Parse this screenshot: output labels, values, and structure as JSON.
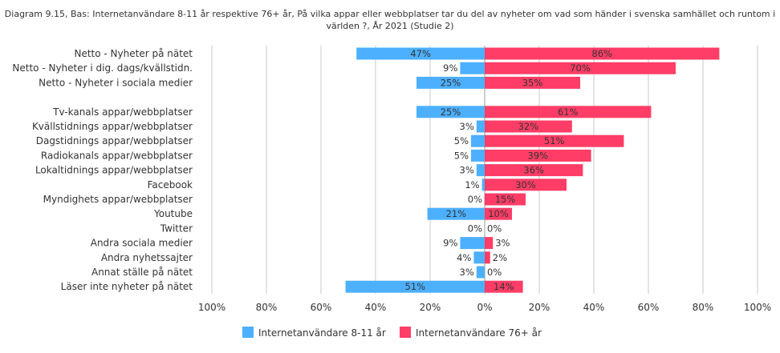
{
  "chart_data": {
    "type": "bar",
    "orientation": "horizontal-diverging",
    "title": "Diagram 9.15, Bas: Internetanvändare 8-11 år respektive 76+ år, På vilka appar eller webbplatser tar du del av nyheter om vad som händer i svenska samhället och runtom i världen ?, År 2021 (Studie 2)",
    "categories": [
      "Netto - Nyheter på nätet",
      "Netto - Nyheter i dig. dags/kvällstidn.",
      "Netto - Nyheter i sociala medier",
      "",
      "Tv-kanals appar/webbplatser",
      "Kvällstidnings appar/webbplatser",
      "Dagstidnings appar/webbplatser",
      "Radiokanals appar/webbplatser",
      "Lokaltidnings appar/webbplatser",
      "Facebook",
      "Myndighets appar/webbplatser",
      "Youtube",
      "Twitter",
      "Andra sociala medier",
      "Andra nyhetssajter",
      "Annat ställe på nätet",
      "Läser inte nyheter på nätet"
    ],
    "series": [
      {
        "name": "Internetanvändare 8-11 år",
        "color": "#4db0ff",
        "direction": "left",
        "values": [
          47,
          9,
          25,
          null,
          25,
          3,
          5,
          5,
          3,
          1,
          0,
          21,
          0,
          9,
          4,
          3,
          51
        ]
      },
      {
        "name": "Internetanvändare 76+ år",
        "color": "#ff3d66",
        "direction": "right",
        "values": [
          86,
          70,
          35,
          null,
          61,
          32,
          51,
          39,
          36,
          30,
          15,
          10,
          0,
          3,
          2,
          0,
          14
        ]
      }
    ],
    "xticks": [
      "100%",
      "80%",
      "60%",
      "40%",
      "20%",
      "0%",
      "20%",
      "40%",
      "60%",
      "80%",
      "100%"
    ],
    "xlim": [
      -100,
      100
    ],
    "grid": true,
    "legend": "bottom"
  }
}
